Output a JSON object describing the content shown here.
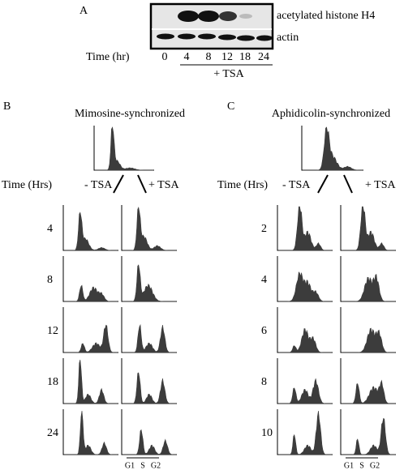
{
  "panel_a": {
    "label": "A",
    "bands": [
      "acetylated histone H4",
      "actin"
    ],
    "time_label": "Time (hr)",
    "times": [
      "0",
      "4",
      "8",
      "12",
      "18",
      "24"
    ],
    "treatment": "+ TSA"
  },
  "panel_b": {
    "label": "B",
    "title": "Mimosine-synchronized",
    "time_label": "Time (Hrs)",
    "minus": "- TSA",
    "plus": "+ TSA",
    "times": [
      "4",
      "8",
      "12",
      "18",
      "24"
    ],
    "phases": [
      "G1",
      "S",
      "G2"
    ]
  },
  "panel_c": {
    "label": "C",
    "title": "Aphidicolin-synchronized",
    "time_label": "Time (Hrs)",
    "minus": "- TSA",
    "plus": "+ TSA",
    "times": [
      "2",
      "4",
      "6",
      "8",
      "10"
    ],
    "phases": [
      "G1",
      "S",
      "G2"
    ]
  }
}
